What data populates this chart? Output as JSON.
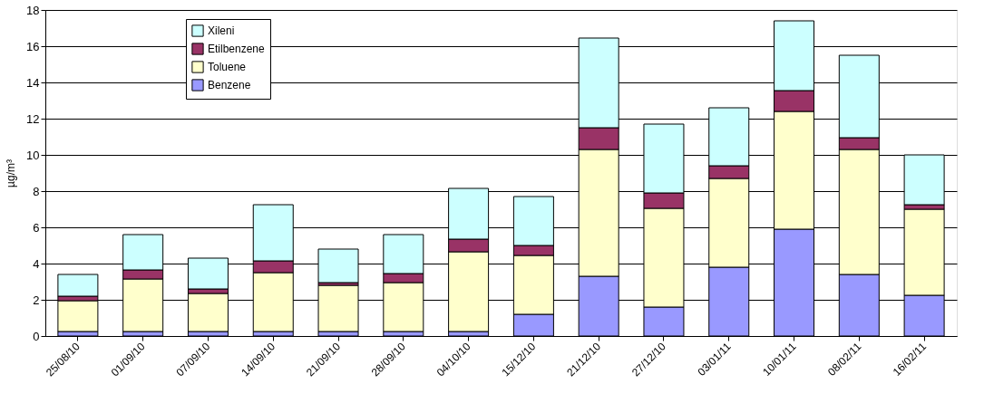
{
  "chart_data": {
    "type": "bar",
    "stacked": true,
    "ylabel": "µg/m³",
    "categories": [
      "25/08/10",
      "01/09/10",
      "07/09/10",
      "14/09/10",
      "21/09/10",
      "28/09/10",
      "04/10/10",
      "15/12/10",
      "21/12/10",
      "27/12/10",
      "03/01/11",
      "10/01/11",
      "08/02/11",
      "16/02/11"
    ],
    "series": [
      {
        "name": "Benzene",
        "color": "#9999ff",
        "values": [
          0.25,
          0.25,
          0.25,
          0.25,
          0.25,
          0.25,
          0.25,
          1.2,
          3.3,
          1.6,
          3.8,
          5.9,
          3.4,
          2.25
        ]
      },
      {
        "name": "Toluene",
        "color": "#ffffcc",
        "values": [
          1.7,
          2.9,
          2.1,
          3.25,
          2.55,
          2.7,
          4.4,
          3.25,
          7.0,
          5.45,
          4.9,
          6.5,
          6.9,
          4.75
        ]
      },
      {
        "name": "Etilbenzene",
        "color": "#993366",
        "values": [
          0.25,
          0.5,
          0.25,
          0.65,
          0.15,
          0.5,
          0.7,
          0.55,
          1.2,
          0.85,
          0.7,
          1.15,
          0.65,
          0.25
        ]
      },
      {
        "name": "Xileni",
        "color": "#ccffff",
        "values": [
          1.2,
          1.95,
          1.7,
          3.1,
          1.85,
          2.15,
          2.8,
          2.7,
          4.95,
          3.8,
          3.2,
          3.85,
          4.55,
          2.75
        ]
      }
    ],
    "ylim": [
      0,
      18
    ],
    "yticks": [
      0,
      2,
      4,
      6,
      8,
      10,
      12,
      14,
      16,
      18
    ],
    "grid": "y",
    "legend": "top left"
  }
}
